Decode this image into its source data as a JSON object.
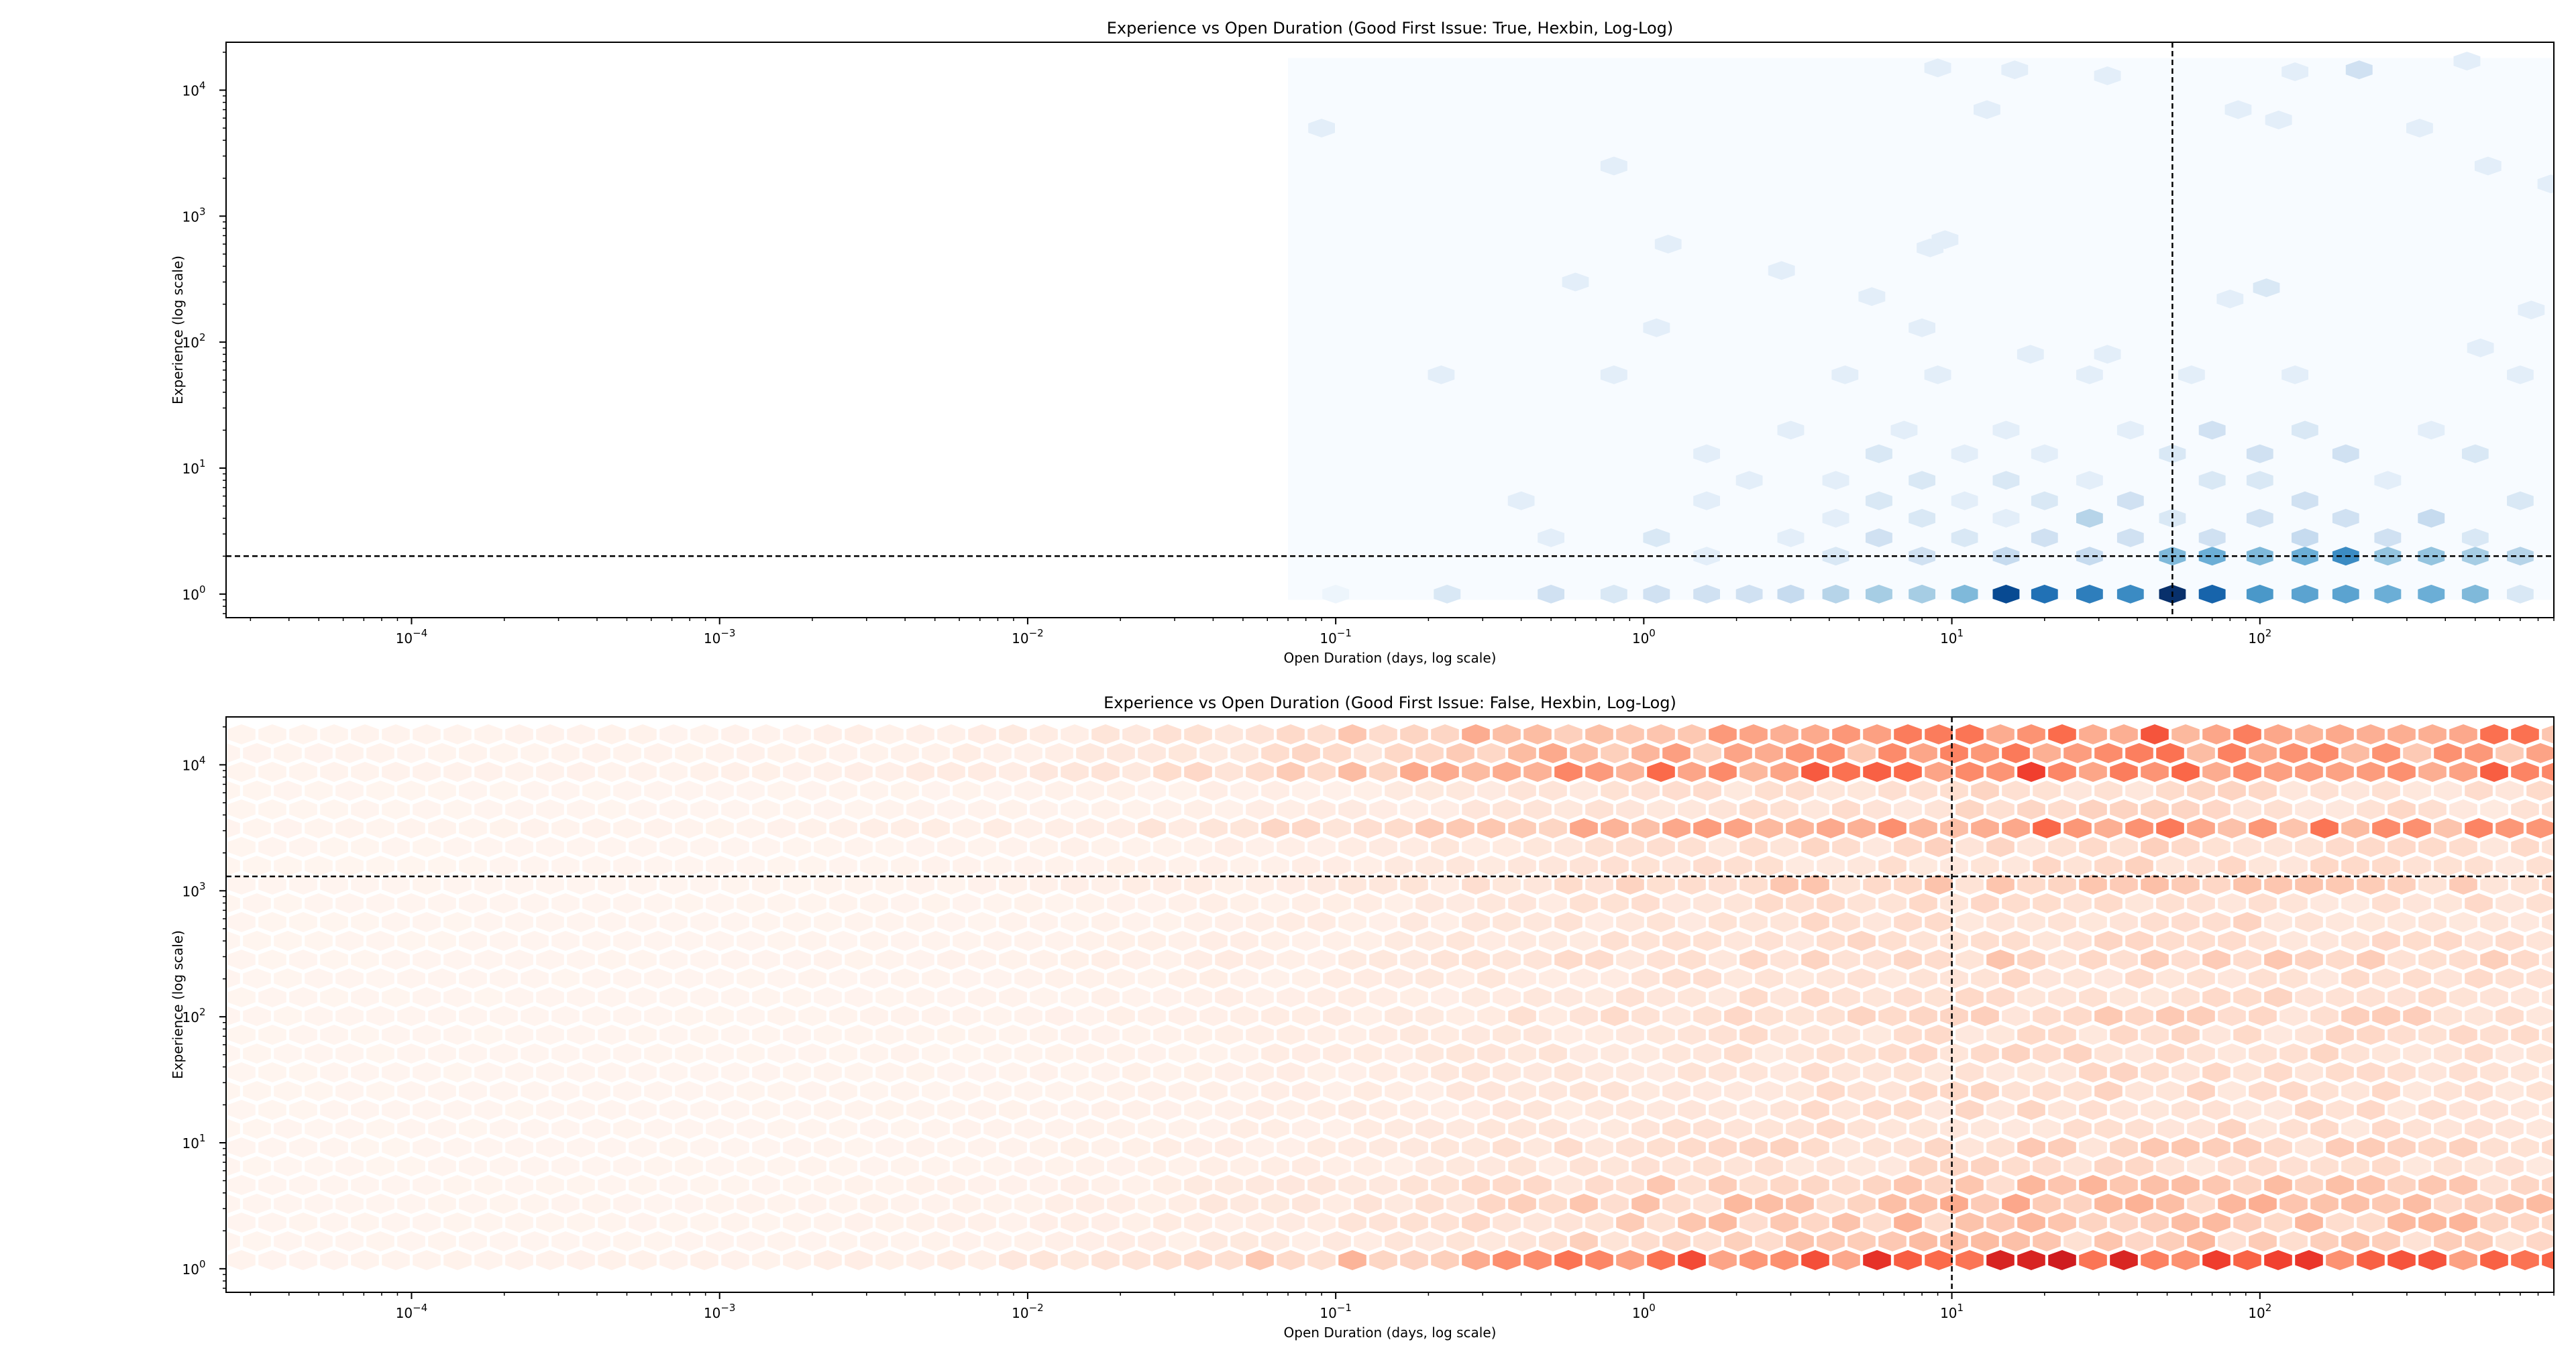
{
  "chart_data": [
    {
      "type": "hexbin",
      "title": "Experience vs Open Duration (Good First Issue: True, Hexbin, Log-Log)",
      "xlabel": "Open Duration (days, log scale)",
      "ylabel": "Experience (log scale)",
      "xscale": "log",
      "yscale": "log",
      "xlim": [
        2.5e-05,
        900
      ],
      "ylim": [
        0.65,
        24000
      ],
      "x_ticks": [
        {
          "value": 0.0001,
          "base": "10",
          "exp": "−4"
        },
        {
          "value": 0.001,
          "base": "10",
          "exp": "−3"
        },
        {
          "value": 0.01,
          "base": "10",
          "exp": "−2"
        },
        {
          "value": 0.1,
          "base": "10",
          "exp": "−1"
        },
        {
          "value": 1,
          "base": "10",
          "exp": "0"
        },
        {
          "value": 10,
          "base": "10",
          "exp": "1"
        },
        {
          "value": 100,
          "base": "10",
          "exp": "2"
        }
      ],
      "y_ticks": [
        {
          "value": 1,
          "base": "10",
          "exp": "0"
        },
        {
          "value": 10,
          "base": "10",
          "exp": "1"
        },
        {
          "value": 100,
          "base": "10",
          "exp": "2"
        },
        {
          "value": 1000,
          "base": "10",
          "exp": "3"
        },
        {
          "value": 10000,
          "base": "10",
          "exp": "4"
        }
      ],
      "colormap": "Blues",
      "color_low": "#f7fbff",
      "color_high": "#08306b",
      "background_region": {
        "x": [
          0.07,
          900
        ],
        "y": [
          0.9,
          18000
        ]
      },
      "median_x": 52,
      "median_y": 2,
      "bins": [
        [
          0.1,
          1,
          0.05
        ],
        [
          0.23,
          1,
          0.15
        ],
        [
          0.5,
          1,
          0.2
        ],
        [
          0.8,
          1,
          0.15
        ],
        [
          1.1,
          1,
          0.2
        ],
        [
          1.6,
          1,
          0.2
        ],
        [
          2.2,
          1,
          0.2
        ],
        [
          3,
          1,
          0.25
        ],
        [
          4.2,
          1,
          0.3
        ],
        [
          5.8,
          1,
          0.35
        ],
        [
          8,
          1,
          0.35
        ],
        [
          11,
          1,
          0.45
        ],
        [
          15,
          1,
          0.9
        ],
        [
          20,
          1,
          0.75
        ],
        [
          28,
          1,
          0.7
        ],
        [
          38,
          1,
          0.65
        ],
        [
          52,
          1,
          1.0
        ],
        [
          70,
          1,
          0.8
        ],
        [
          100,
          1,
          0.6
        ],
        [
          140,
          1,
          0.55
        ],
        [
          190,
          1,
          0.55
        ],
        [
          260,
          1,
          0.5
        ],
        [
          360,
          1,
          0.5
        ],
        [
          500,
          1,
          0.45
        ],
        [
          700,
          1,
          0.15
        ],
        [
          1.6,
          2,
          0.1
        ],
        [
          4.2,
          2,
          0.15
        ],
        [
          8,
          2,
          0.2
        ],
        [
          15,
          2,
          0.25
        ],
        [
          28,
          2,
          0.25
        ],
        [
          52,
          2,
          0.45
        ],
        [
          70,
          2,
          0.5
        ],
        [
          100,
          2,
          0.45
        ],
        [
          140,
          2,
          0.5
        ],
        [
          190,
          2,
          0.65
        ],
        [
          260,
          2,
          0.4
        ],
        [
          360,
          2,
          0.4
        ],
        [
          500,
          2,
          0.35
        ],
        [
          700,
          2,
          0.3
        ],
        [
          0.5,
          2.8,
          0.1
        ],
        [
          1.1,
          2.8,
          0.15
        ],
        [
          3,
          2.8,
          0.1
        ],
        [
          5.8,
          2.8,
          0.2
        ],
        [
          11,
          2.8,
          0.15
        ],
        [
          20,
          2.8,
          0.2
        ],
        [
          38,
          2.8,
          0.2
        ],
        [
          70,
          2.8,
          0.2
        ],
        [
          140,
          2.8,
          0.25
        ],
        [
          260,
          2.8,
          0.2
        ],
        [
          500,
          2.8,
          0.15
        ],
        [
          4.2,
          4,
          0.1
        ],
        [
          8,
          4,
          0.15
        ],
        [
          15,
          4,
          0.1
        ],
        [
          28,
          4,
          0.3
        ],
        [
          52,
          4,
          0.15
        ],
        [
          100,
          4,
          0.2
        ],
        [
          190,
          4,
          0.2
        ],
        [
          360,
          4,
          0.25
        ],
        [
          0.4,
          5.5,
          0.1
        ],
        [
          1.6,
          5.5,
          0.1
        ],
        [
          5.8,
          5.5,
          0.15
        ],
        [
          11,
          5.5,
          0.1
        ],
        [
          20,
          5.5,
          0.15
        ],
        [
          38,
          5.5,
          0.2
        ],
        [
          140,
          5.5,
          0.2
        ],
        [
          700,
          5.5,
          0.15
        ],
        [
          2.2,
          8,
          0.1
        ],
        [
          4.2,
          8,
          0.1
        ],
        [
          8,
          8,
          0.15
        ],
        [
          15,
          8,
          0.15
        ],
        [
          28,
          8,
          0.1
        ],
        [
          70,
          8,
          0.15
        ],
        [
          100,
          8,
          0.15
        ],
        [
          260,
          8,
          0.1
        ],
        [
          1.6,
          13,
          0.1
        ],
        [
          5.8,
          13,
          0.15
        ],
        [
          11,
          13,
          0.1
        ],
        [
          20,
          13,
          0.1
        ],
        [
          52,
          13,
          0.15
        ],
        [
          100,
          13,
          0.2
        ],
        [
          190,
          13,
          0.2
        ],
        [
          500,
          13,
          0.15
        ],
        [
          3,
          20,
          0.1
        ],
        [
          7,
          20,
          0.1
        ],
        [
          15,
          20,
          0.1
        ],
        [
          38,
          20,
          0.1
        ],
        [
          70,
          20,
          0.2
        ],
        [
          140,
          20,
          0.15
        ],
        [
          360,
          20,
          0.1
        ],
        [
          0.22,
          55,
          0.1
        ],
        [
          0.8,
          55,
          0.1
        ],
        [
          4.5,
          55,
          0.1
        ],
        [
          9,
          55,
          0.1
        ],
        [
          28,
          55,
          0.1
        ],
        [
          60,
          55,
          0.1
        ],
        [
          130,
          55,
          0.1
        ],
        [
          700,
          55,
          0.1
        ],
        [
          1.1,
          130,
          0.1
        ],
        [
          8,
          130,
          0.1
        ],
        [
          18,
          80,
          0.1
        ],
        [
          32,
          80,
          0.1
        ],
        [
          520,
          90,
          0.1
        ],
        [
          0.6,
          300,
          0.1
        ],
        [
          5.5,
          230,
          0.1
        ],
        [
          80,
          220,
          0.1
        ],
        [
          105,
          270,
          0.15
        ],
        [
          760,
          180,
          0.1
        ],
        [
          1.2,
          600,
          0.1
        ],
        [
          2.8,
          370,
          0.1
        ],
        [
          8.5,
          560,
          0.1
        ],
        [
          9.5,
          650,
          0.1
        ],
        [
          0.8,
          2500,
          0.1
        ],
        [
          550,
          2500,
          0.1
        ],
        [
          880,
          1800,
          0.1
        ],
        [
          0.09,
          5000,
          0.1
        ],
        [
          13,
          7000,
          0.1
        ],
        [
          85,
          7000,
          0.1
        ],
        [
          115,
          5800,
          0.1
        ],
        [
          330,
          5000,
          0.1
        ],
        [
          9,
          15000,
          0.1
        ],
        [
          16,
          14500,
          0.1
        ],
        [
          32,
          13000,
          0.1
        ],
        [
          130,
          14000,
          0.1
        ],
        [
          210,
          14500,
          0.2
        ],
        [
          470,
          17000,
          0.1
        ]
      ]
    },
    {
      "type": "hexbin",
      "title": "Experience vs Open Duration (Good First Issue: False, Hexbin, Log-Log)",
      "xlabel": "Open Duration (days, log scale)",
      "ylabel": "Experience (log scale)",
      "xscale": "log",
      "yscale": "log",
      "xlim": [
        2.5e-05,
        900
      ],
      "ylim": [
        0.65,
        24000
      ],
      "x_ticks": [
        {
          "value": 0.0001,
          "base": "10",
          "exp": "−4"
        },
        {
          "value": 0.001,
          "base": "10",
          "exp": "−3"
        },
        {
          "value": 0.01,
          "base": "10",
          "exp": "−2"
        },
        {
          "value": 0.1,
          "base": "10",
          "exp": "−1"
        },
        {
          "value": 1,
          "base": "10",
          "exp": "0"
        },
        {
          "value": 10,
          "base": "10",
          "exp": "1"
        },
        {
          "value": 100,
          "base": "10",
          "exp": "2"
        }
      ],
      "y_ticks": [
        {
          "value": 1,
          "base": "10",
          "exp": "0"
        },
        {
          "value": 10,
          "base": "10",
          "exp": "1"
        },
        {
          "value": 100,
          "base": "10",
          "exp": "2"
        },
        {
          "value": 1000,
          "base": "10",
          "exp": "3"
        },
        {
          "value": 10000,
          "base": "10",
          "exp": "4"
        }
      ],
      "colormap": "Reds",
      "color_low": "#fff5f0",
      "color_high": "#67000d",
      "median_x": 10,
      "median_y": 1300,
      "density_bands": [
        {
          "y": 1,
          "weight": 0.85
        },
        {
          "y": 2,
          "weight": 0.35
        },
        {
          "y": 3,
          "weight": 0.3
        },
        {
          "y": 5,
          "weight": 0.25
        },
        {
          "y": 10,
          "weight": 0.2
        },
        {
          "y": 30,
          "weight": 0.18
        },
        {
          "y": 100,
          "weight": 0.18
        },
        {
          "y": 300,
          "weight": 0.2
        },
        {
          "y": 1000,
          "weight": 0.25
        },
        {
          "y": 3000,
          "weight": 0.45
        },
        {
          "y": 10000,
          "weight": 0.7
        },
        {
          "y": 17000,
          "weight": 0.5
        }
      ],
      "density_x_profile": [
        {
          "x": 2.5e-05,
          "weight": 0.02
        },
        {
          "x": 0.001,
          "weight": 0.04
        },
        {
          "x": 0.01,
          "weight": 0.12
        },
        {
          "x": 0.1,
          "weight": 0.35
        },
        {
          "x": 1,
          "weight": 0.75
        },
        {
          "x": 10,
          "weight": 0.95
        },
        {
          "x": 50,
          "weight": 1.0
        },
        {
          "x": 900,
          "weight": 0.8
        }
      ]
    }
  ]
}
